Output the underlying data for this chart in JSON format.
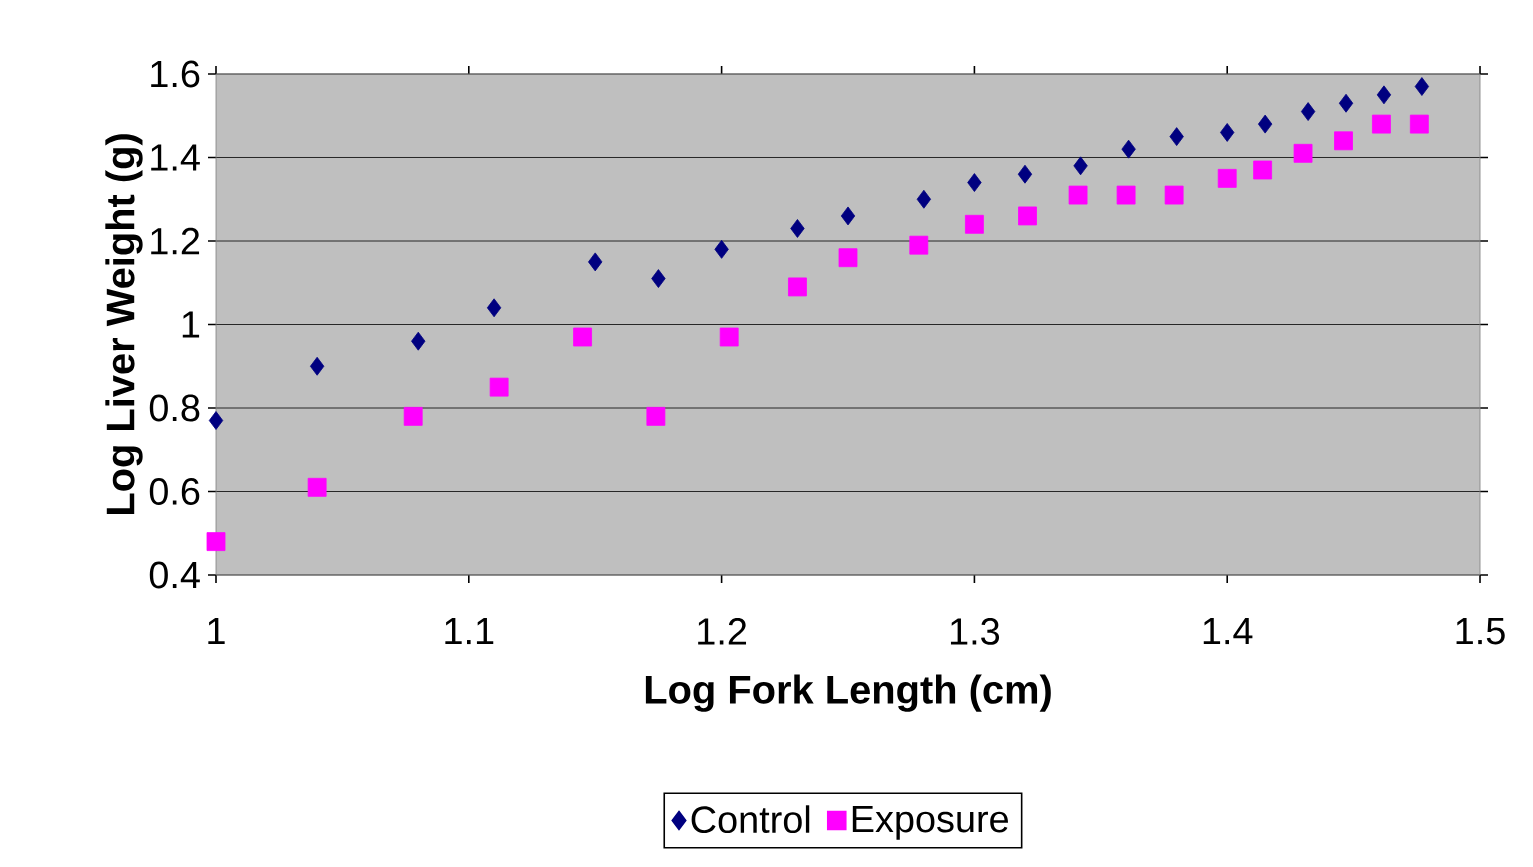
{
  "chart_data": {
    "type": "scatter",
    "xlabel": "Log Fork Length (cm)",
    "ylabel": "Log Liver Weight (g)",
    "xlim": [
      1,
      1.5
    ],
    "xticks": [
      1,
      1.1,
      1.2,
      1.3,
      1.4,
      1.5
    ],
    "ylim": [
      0.4,
      1.6
    ],
    "yticks": [
      0.4,
      0.6,
      0.8,
      1,
      1.2,
      1.4,
      1.6
    ],
    "grid": "y",
    "legend": "bottom",
    "series": [
      {
        "name": "Control",
        "color": "#000080",
        "marker": "diamond",
        "x": [
          1.0,
          1.04,
          1.08,
          1.11,
          1.15,
          1.175,
          1.2,
          1.23,
          1.25,
          1.28,
          1.3,
          1.32,
          1.342,
          1.361,
          1.38,
          1.4,
          1.415,
          1.432,
          1.447,
          1.462,
          1.477
        ],
        "values": [
          0.77,
          0.9,
          0.96,
          1.04,
          1.15,
          1.11,
          1.18,
          1.23,
          1.26,
          1.3,
          1.34,
          1.36,
          1.38,
          1.42,
          1.45,
          1.46,
          1.48,
          1.51,
          1.53,
          1.55,
          1.57
        ]
      },
      {
        "name": "Exposure",
        "color": "#ff00ff",
        "marker": "square",
        "x": [
          1.0,
          1.04,
          1.078,
          1.112,
          1.145,
          1.174,
          1.203,
          1.23,
          1.25,
          1.278,
          1.3,
          1.321,
          1.341,
          1.36,
          1.379,
          1.4,
          1.414,
          1.43,
          1.446,
          1.461,
          1.476
        ],
        "values": [
          0.48,
          0.61,
          0.78,
          0.85,
          0.97,
          0.78,
          0.97,
          1.09,
          1.16,
          1.19,
          1.24,
          1.26,
          1.31,
          1.31,
          1.31,
          1.35,
          1.37,
          1.41,
          1.44,
          1.48,
          1.48
        ]
      }
    ]
  }
}
